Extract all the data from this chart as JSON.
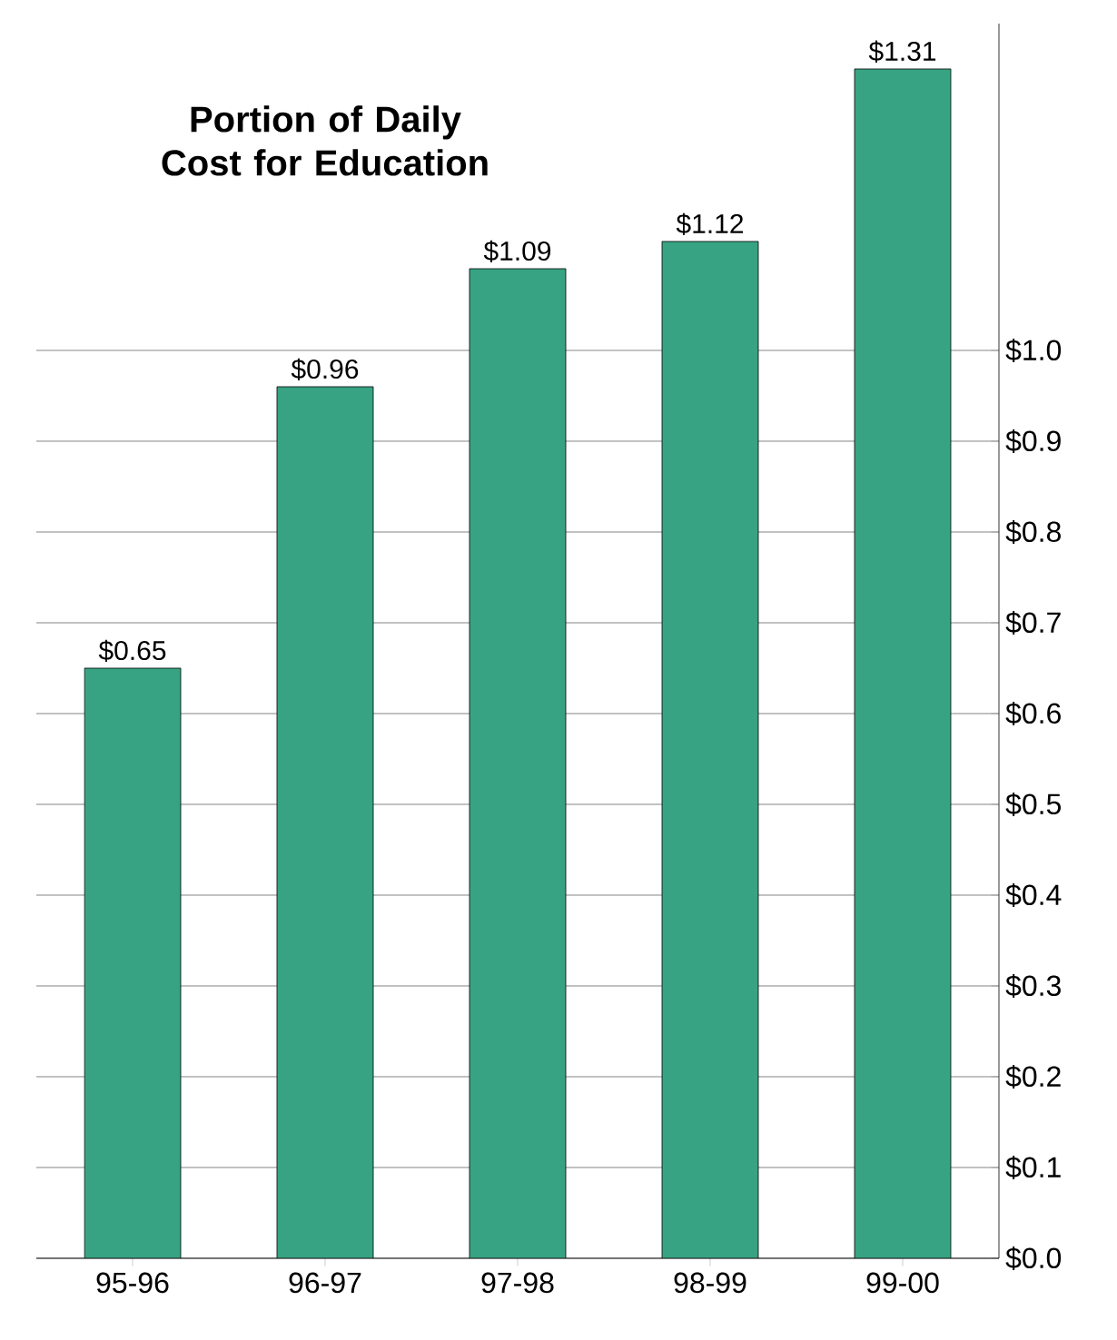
{
  "chart_data": {
    "type": "bar",
    "title": "Portion of Daily Cost for Education",
    "categories": [
      "95-96",
      "96-97",
      "97-98",
      "98-99",
      "99-00"
    ],
    "values": [
      0.65,
      0.96,
      1.09,
      1.12,
      1.31
    ],
    "value_labels": [
      "$0.65",
      "$0.96",
      "$1.09",
      "$1.12",
      "$1.31"
    ],
    "color": "#38a383",
    "ylim": [
      0,
      1.36
    ],
    "yticks": [
      {
        "value": 0,
        "label": "$0.0"
      },
      {
        "value": 0.1,
        "label": "$0.1"
      },
      {
        "value": 0.2,
        "label": "$0.2"
      },
      {
        "value": 0.3,
        "label": "$0.3"
      },
      {
        "value": 0.4,
        "label": "$0.4"
      },
      {
        "value": 0.5,
        "label": "$0.5"
      },
      {
        "value": 0.6,
        "label": "$0.6"
      },
      {
        "value": 0.7,
        "label": "$0.7"
      },
      {
        "value": 0.8,
        "label": "$0.8"
      },
      {
        "value": 0.9,
        "label": "$0.9"
      },
      {
        "value": 1.0,
        "label": "$1.0"
      }
    ],
    "grid": "y"
  }
}
